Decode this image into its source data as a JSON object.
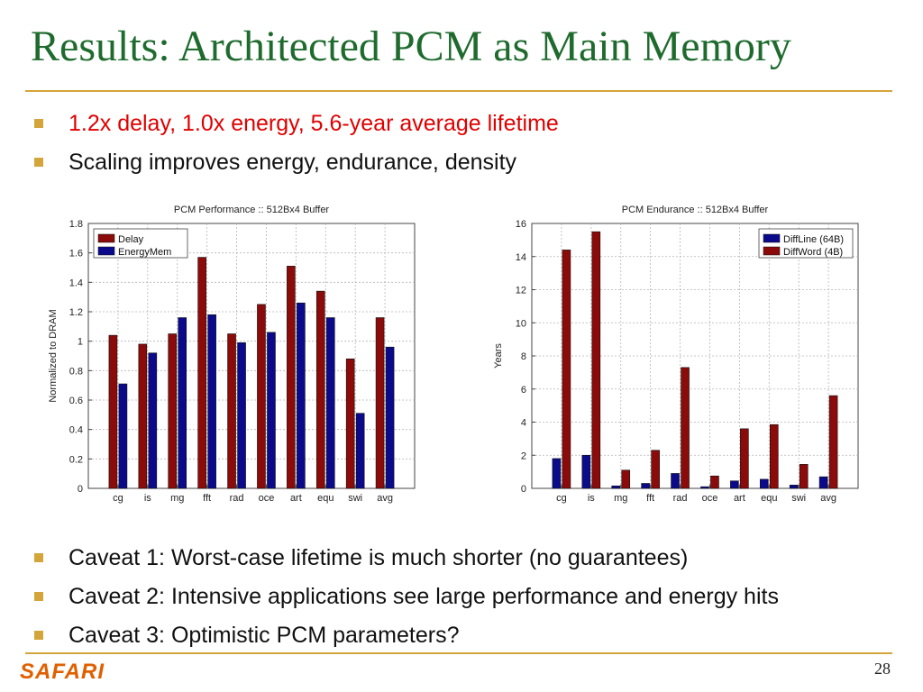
{
  "slide": {
    "title": "Results: Architected PCM as Main Memory",
    "bullets_top": [
      {
        "text": "1.2x delay, 1.0x energy, 5.6-year average lifetime",
        "color": "#e00000"
      },
      {
        "text": "Scaling improves energy, endurance, density",
        "color": "#111111"
      }
    ],
    "bullets_bottom": [
      {
        "text": "Caveat 1: Worst-case lifetime is much shorter (no guarantees)"
      },
      {
        "text": "Caveat 2: Intensive applications see large performance and energy hits"
      },
      {
        "text": "Caveat 3: Optimistic PCM parameters?"
      }
    ],
    "logo": "SAFARI",
    "page_number": "28"
  },
  "chart_data": [
    {
      "type": "bar",
      "title": "PCM Performance :: 512Bx4 Buffer",
      "xlabel": "",
      "ylabel": "Normalized to DRAM",
      "ylim": [
        0,
        1.8
      ],
      "yticks": [
        0,
        0.2,
        0.4,
        0.6,
        0.8,
        1,
        1.2,
        1.4,
        1.6,
        1.8
      ],
      "grid": true,
      "legend": "top-left",
      "categories": [
        "cg",
        "is",
        "mg",
        "fft",
        "rad",
        "oce",
        "art",
        "equ",
        "swi",
        "avg"
      ],
      "series": [
        {
          "name": "Delay",
          "color": "#8b0a0a",
          "values": [
            1.04,
            0.98,
            1.05,
            1.57,
            1.05,
            1.25,
            1.51,
            1.34,
            0.88,
            1.16
          ]
        },
        {
          "name": "EnergyMem",
          "color": "#0a0a8b",
          "values": [
            0.71,
            0.92,
            1.16,
            1.18,
            0.99,
            1.06,
            1.26,
            1.16,
            0.51,
            0.96
          ]
        }
      ]
    },
    {
      "type": "bar",
      "title": "PCM Endurance :: 512Bx4 Buffer",
      "xlabel": "",
      "ylabel": "Years",
      "ylim": [
        0,
        16
      ],
      "yticks": [
        0,
        2,
        4,
        6,
        8,
        10,
        12,
        14,
        16
      ],
      "grid": true,
      "legend": "top-right",
      "categories": [
        "cg",
        "is",
        "mg",
        "fft",
        "rad",
        "oce",
        "art",
        "equ",
        "swi",
        "avg"
      ],
      "series": [
        {
          "name": "DiffLine (64B)",
          "color": "#0a0a8b",
          "values": [
            1.8,
            2.0,
            0.15,
            0.3,
            0.9,
            0.1,
            0.45,
            0.55,
            0.2,
            0.7
          ]
        },
        {
          "name": "DiffWord (4B)",
          "color": "#8b0a0a",
          "values": [
            14.4,
            15.5,
            1.1,
            2.3,
            7.3,
            0.75,
            3.6,
            3.85,
            1.45,
            5.6
          ]
        }
      ]
    }
  ]
}
